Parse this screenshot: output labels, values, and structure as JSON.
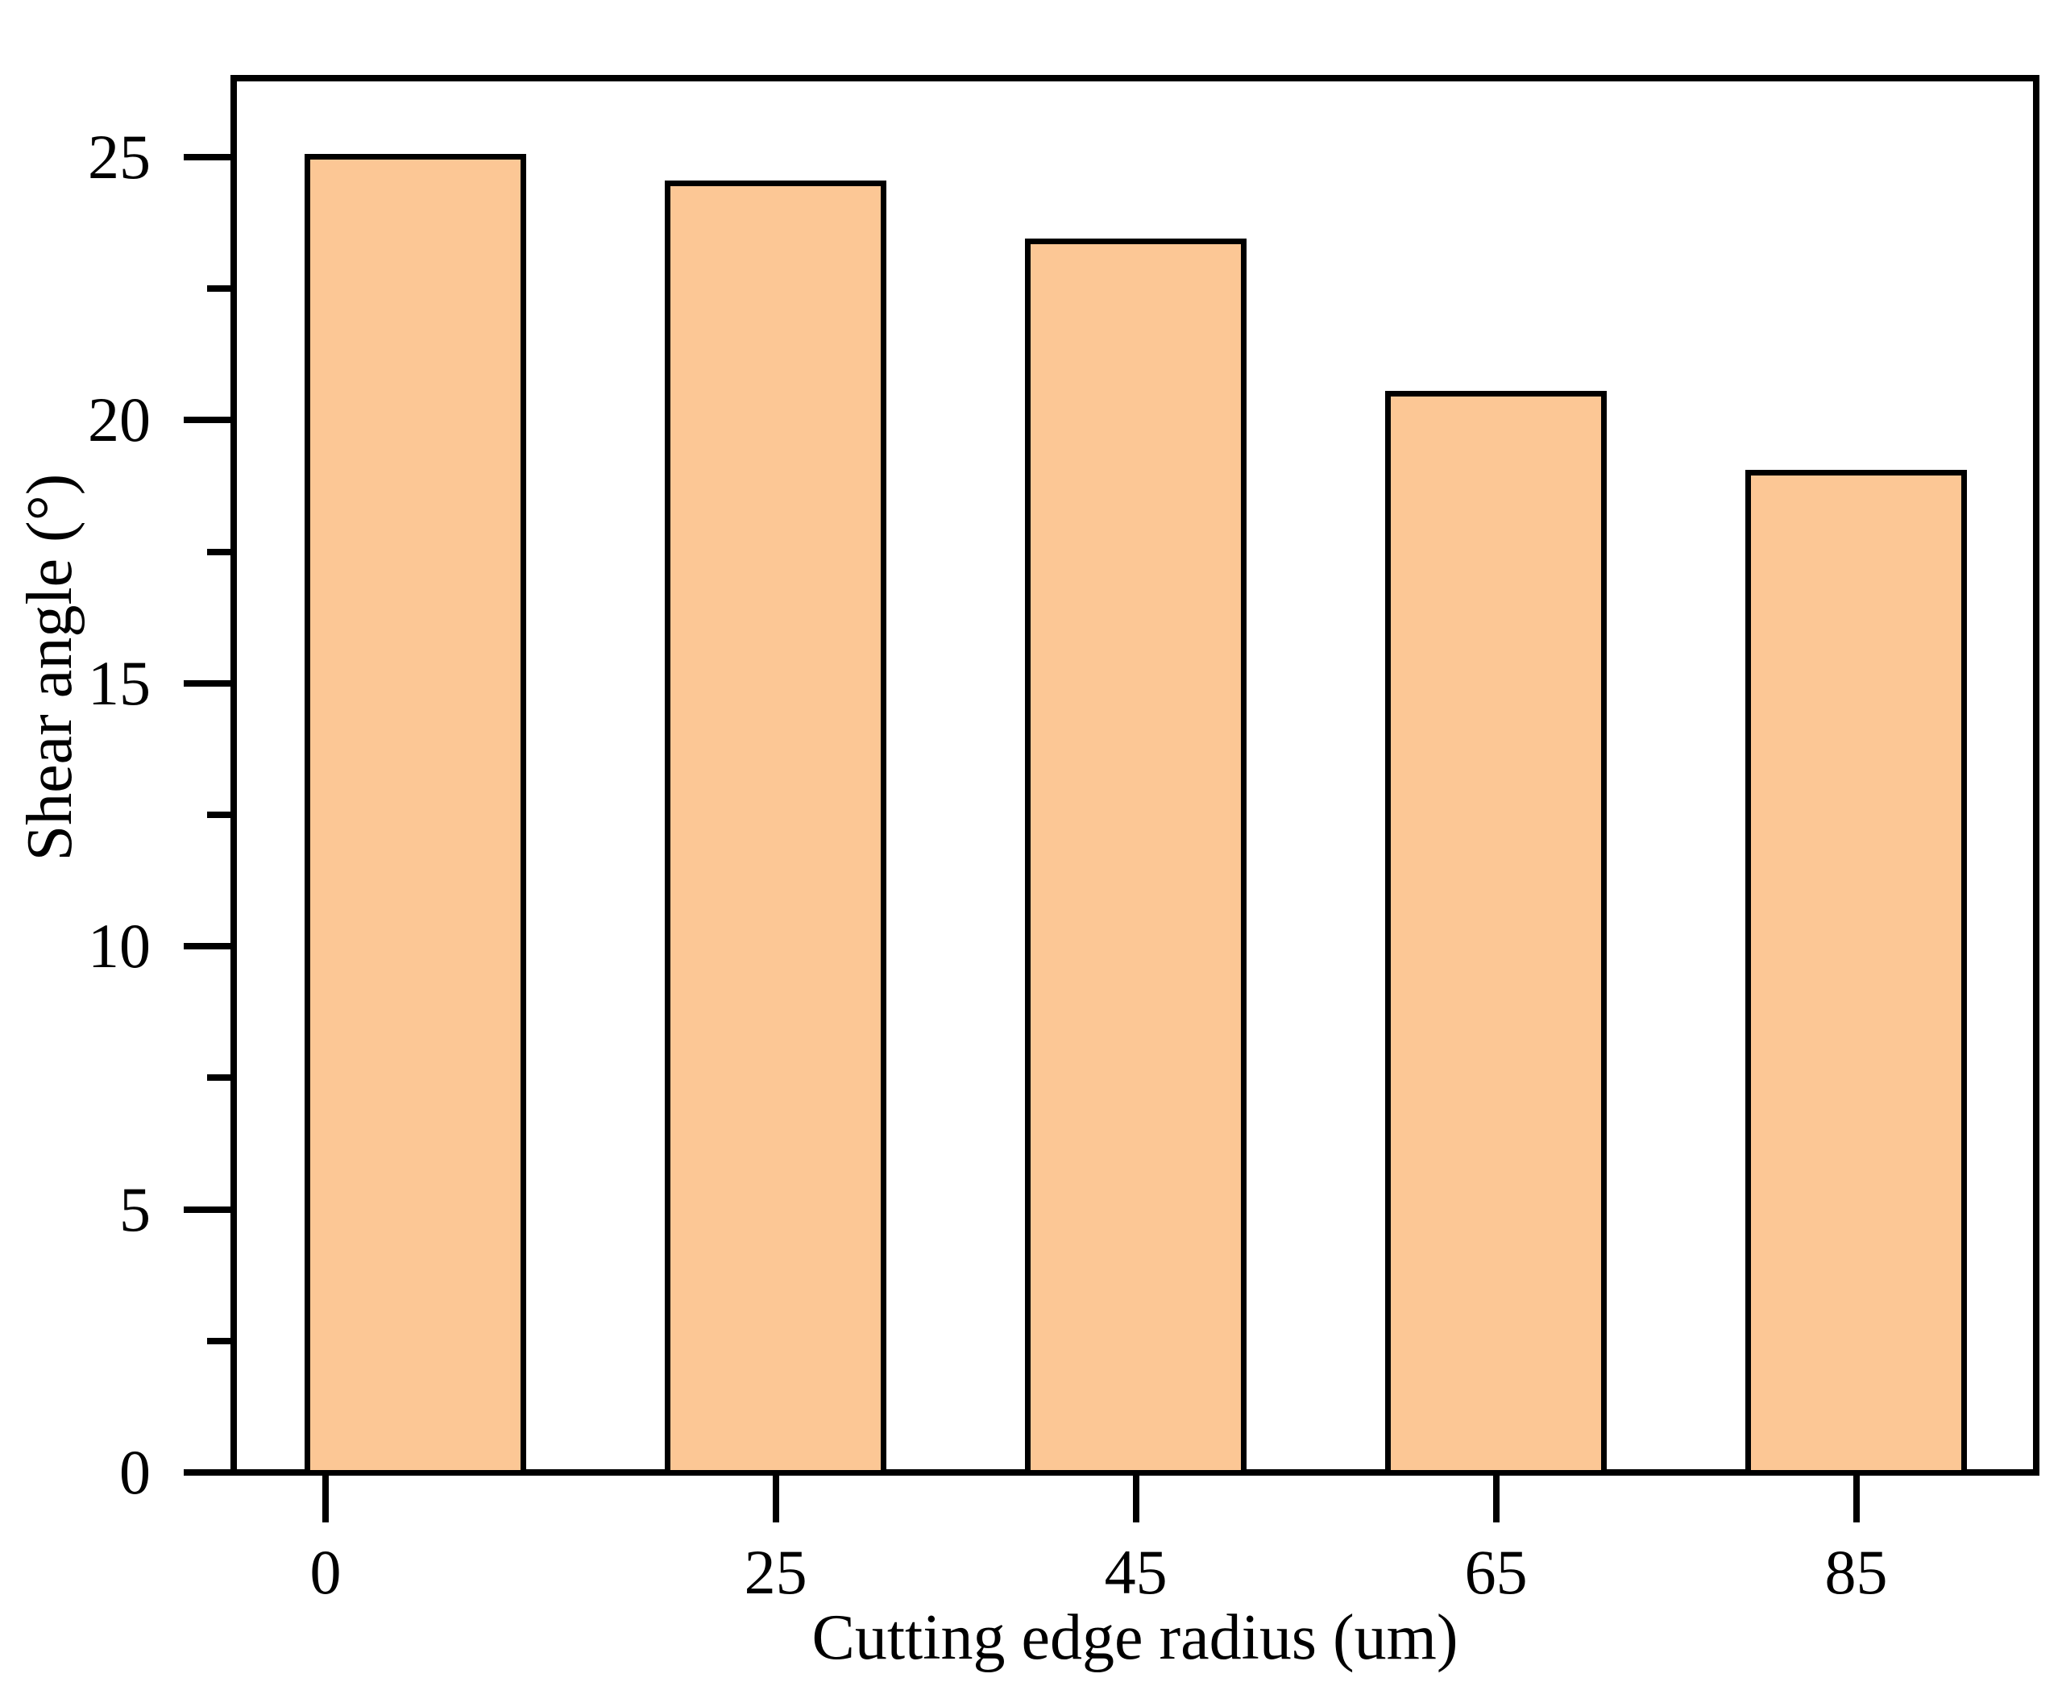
{
  "chart_data": {
    "type": "bar",
    "title": "",
    "categories": [
      0,
      25,
      45,
      65,
      85
    ],
    "values": [
      25.0,
      24.5,
      23.4,
      20.5,
      19.0
    ],
    "series": [
      {
        "name": "Shear angle",
        "values": [
          25.0,
          24.5,
          23.4,
          20.5,
          19.0
        ]
      }
    ],
    "xlabel": "Cutting edge radius (um)",
    "ylabel": "Shear angle (°)",
    "ylim": [
      0,
      26.5
    ],
    "xlim": [
      -5.1,
      95.0
    ],
    "y_major_ticks": [
      0,
      5,
      10,
      15,
      20,
      25
    ],
    "y_tick_labels": [
      "0",
      "5",
      "10",
      "15",
      "20",
      "25"
    ],
    "y_minor_ticks": [
      2.5,
      7.5,
      12.5,
      17.5,
      22.5
    ],
    "x_ticks": [
      0,
      25,
      45,
      65,
      85
    ],
    "x_tick_labels": [
      "0",
      "25",
      "45",
      "65",
      "85"
    ],
    "bar_centers": [
      5,
      25,
      45,
      65,
      85
    ],
    "bar_width_units": 12,
    "grid": false,
    "legend": null,
    "colors": {
      "bar_fill": "#FCC795",
      "bar_stroke": "#000000",
      "axis": "#000000",
      "background": "#FFFFFF"
    }
  }
}
